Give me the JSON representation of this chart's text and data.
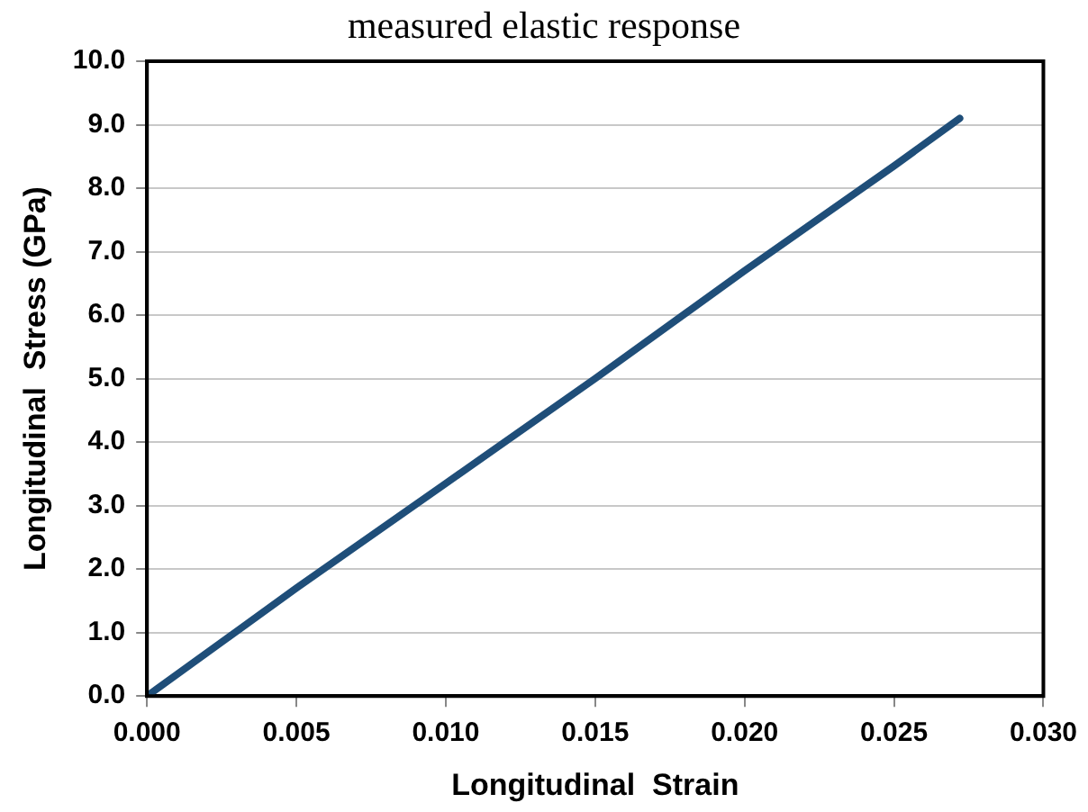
{
  "chart_data": {
    "type": "line",
    "title": "measured elastic response",
    "xlabel": "Longitudinal  Strain",
    "ylabel": "Longitudinal  Stress (GPa)",
    "x": [
      0,
      0.005,
      0.01,
      0.015,
      0.02,
      0.025,
      0.0272
    ],
    "series": [
      {
        "color": "#1f4e79",
        "values": [
          0,
          1.7,
          3.35,
          5.0,
          6.7,
          8.35,
          9.1
        ]
      }
    ],
    "xlim": [
      0,
      0.03
    ],
    "xticks": [
      {
        "value": 0,
        "label": "0.000"
      },
      {
        "value": 0.005,
        "label": "0.005"
      },
      {
        "value": 0.01,
        "label": "0.010"
      },
      {
        "value": 0.015,
        "label": "0.015"
      },
      {
        "value": 0.02,
        "label": "0.020"
      },
      {
        "value": 0.025,
        "label": "0.025"
      },
      {
        "value": 0.03,
        "label": "0.030"
      }
    ],
    "ylim": [
      0,
      10
    ],
    "yticks": [
      {
        "value": 0,
        "label": "0.0"
      },
      {
        "value": 1,
        "label": "1.0"
      },
      {
        "value": 2,
        "label": "2.0"
      },
      {
        "value": 3,
        "label": "3.0"
      },
      {
        "value": 4,
        "label": "4.0"
      },
      {
        "value": 5,
        "label": "5.0"
      },
      {
        "value": 6,
        "label": "6.0"
      },
      {
        "value": 7,
        "label": "7.0"
      },
      {
        "value": 8,
        "label": "8.0"
      },
      {
        "value": 9,
        "label": "9.0"
      },
      {
        "value": 10,
        "label": "10.0"
      }
    ],
    "grid": "y",
    "legend": false,
    "marker": "none",
    "line_style": "solid"
  }
}
